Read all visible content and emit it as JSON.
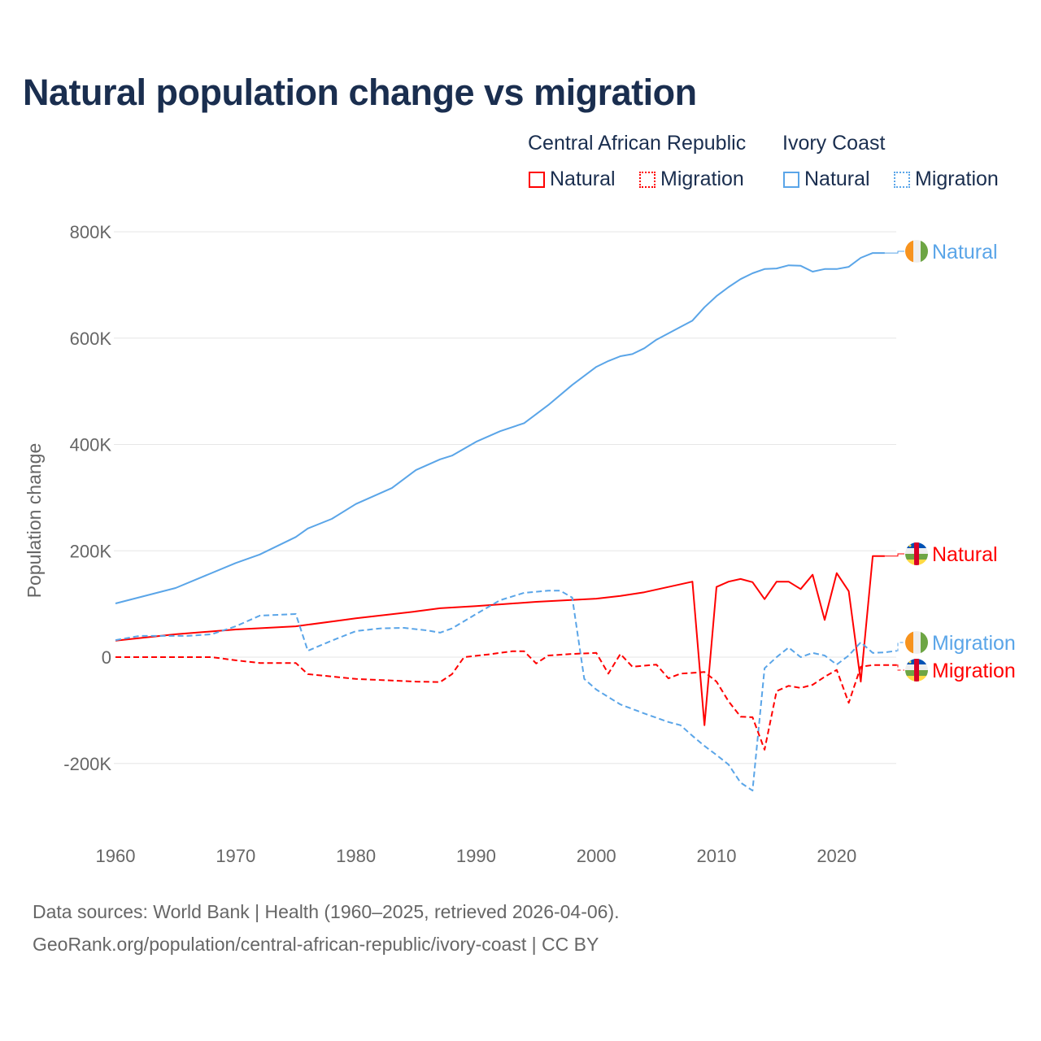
{
  "chart_data": {
    "type": "line",
    "title": "Natural population change vs migration",
    "ylabel": "Population change",
    "xlabel": "",
    "xlim": [
      1960,
      2025
    ],
    "ylim": [
      -300000,
      800000
    ],
    "x_ticks": [
      1960,
      1970,
      1980,
      1990,
      2000,
      2010,
      2020
    ],
    "x_tick_labels": [
      "1960",
      "1970",
      "1980",
      "1990",
      "2000",
      "2010",
      "2020"
    ],
    "y_ticks": [
      -200000,
      0,
      200000,
      400000,
      600000,
      800000
    ],
    "y_tick_labels": [
      "-200K",
      "0",
      "200K",
      "400K",
      "600K",
      "800K"
    ],
    "grid": true,
    "legend": {
      "placement": "top-right",
      "groups": [
        {
          "country": "Central African Republic",
          "items": [
            "Natural",
            "Migration"
          ]
        },
        {
          "country": "Ivory Coast",
          "items": [
            "Natural",
            "Migration"
          ]
        }
      ]
    },
    "series": [
      {
        "name": "Ivory Coast Natural",
        "label": "Natural",
        "color": "#5aa5e8",
        "dash": false,
        "flag": "ivory-coast",
        "points": [
          [
            1960,
            101
          ],
          [
            1965,
            130
          ],
          [
            1970,
            177
          ],
          [
            1972,
            193
          ],
          [
            1975,
            226
          ],
          [
            1976,
            242
          ],
          [
            1978,
            260
          ],
          [
            1980,
            288
          ],
          [
            1983,
            318
          ],
          [
            1985,
            352
          ],
          [
            1987,
            372
          ],
          [
            1988,
            379
          ],
          [
            1990,
            405
          ],
          [
            1992,
            425
          ],
          [
            1994,
            440
          ],
          [
            1996,
            474
          ],
          [
            1998,
            512
          ],
          [
            2000,
            546
          ],
          [
            2001,
            557
          ],
          [
            2002,
            566
          ],
          [
            2003,
            570
          ],
          [
            2004,
            581
          ],
          [
            2005,
            597
          ],
          [
            2006,
            609
          ],
          [
            2007,
            621
          ],
          [
            2008,
            633
          ],
          [
            2009,
            658
          ],
          [
            2010,
            679
          ],
          [
            2011,
            696
          ],
          [
            2012,
            711
          ],
          [
            2013,
            722
          ],
          [
            2014,
            730
          ],
          [
            2015,
            731
          ],
          [
            2016,
            737
          ],
          [
            2017,
            736
          ],
          [
            2018,
            725
          ],
          [
            2019,
            730
          ],
          [
            2020,
            730
          ],
          [
            2021,
            734
          ],
          [
            2022,
            751
          ],
          [
            2023,
            760
          ],
          [
            2024,
            760
          ]
        ]
      },
      {
        "name": "Central African Republic Natural",
        "label": "Natural",
        "color": "#ff0000",
        "dash": false,
        "flag": "central-african-republic",
        "points": [
          [
            1960,
            31
          ],
          [
            1965,
            43
          ],
          [
            1970,
            52
          ],
          [
            1975,
            58
          ],
          [
            1980,
            73
          ],
          [
            1985,
            86
          ],
          [
            1987,
            92
          ],
          [
            1990,
            96
          ],
          [
            1995,
            104
          ],
          [
            2000,
            110
          ],
          [
            2002,
            115
          ],
          [
            2004,
            122
          ],
          [
            2006,
            132
          ],
          [
            2008,
            142
          ],
          [
            2009,
            -128
          ],
          [
            2010,
            132
          ],
          [
            2011,
            142
          ],
          [
            2012,
            147
          ],
          [
            2013,
            141
          ],
          [
            2014,
            109
          ],
          [
            2015,
            142
          ],
          [
            2016,
            142
          ],
          [
            2017,
            128
          ],
          [
            2018,
            155
          ],
          [
            2019,
            70
          ],
          [
            2020,
            158
          ],
          [
            2021,
            124
          ],
          [
            2022,
            -46
          ],
          [
            2023,
            190
          ],
          [
            2024,
            190
          ]
        ]
      },
      {
        "name": "Ivory Coast Migration",
        "label": "Migration",
        "color": "#5aa5e8",
        "dash": true,
        "flag": "ivory-coast",
        "points": [
          [
            1960,
            32
          ],
          [
            1962,
            40
          ],
          [
            1966,
            40
          ],
          [
            1968,
            43
          ],
          [
            1970,
            58
          ],
          [
            1972,
            78
          ],
          [
            1975,
            81
          ],
          [
            1976,
            12
          ],
          [
            1978,
            31
          ],
          [
            1980,
            49
          ],
          [
            1982,
            54
          ],
          [
            1984,
            55
          ],
          [
            1986,
            50
          ],
          [
            1987,
            46
          ],
          [
            1988,
            54
          ],
          [
            1990,
            81
          ],
          [
            1992,
            107
          ],
          [
            1994,
            121
          ],
          [
            1996,
            125
          ],
          [
            1997,
            125
          ],
          [
            1998,
            112
          ],
          [
            1999,
            -41
          ],
          [
            2000,
            -61
          ],
          [
            2002,
            -89
          ],
          [
            2004,
            -106
          ],
          [
            2006,
            -122
          ],
          [
            2007,
            -128
          ],
          [
            2008,
            -148
          ],
          [
            2009,
            -167
          ],
          [
            2010,
            -184
          ],
          [
            2011,
            -202
          ],
          [
            2012,
            -236
          ],
          [
            2013,
            -251
          ],
          [
            2014,
            -21
          ],
          [
            2015,
            0
          ],
          [
            2016,
            18
          ],
          [
            2017,
            0
          ],
          [
            2018,
            8
          ],
          [
            2019,
            3
          ],
          [
            2020,
            -14
          ],
          [
            2021,
            3
          ],
          [
            2022,
            28
          ],
          [
            2023,
            8
          ],
          [
            2024,
            9
          ],
          [
            2025,
            12
          ]
        ]
      },
      {
        "name": "Central African Republic Migration",
        "label": "Migration",
        "color": "#ff0000",
        "dash": true,
        "flag": "central-african-republic",
        "points": [
          [
            1960,
            0
          ],
          [
            1968,
            0
          ],
          [
            1970,
            -6
          ],
          [
            1972,
            -11
          ],
          [
            1975,
            -11
          ],
          [
            1976,
            -32
          ],
          [
            1980,
            -41
          ],
          [
            1985,
            -46
          ],
          [
            1987,
            -47
          ],
          [
            1988,
            -32
          ],
          [
            1989,
            0
          ],
          [
            1991,
            5
          ],
          [
            1993,
            11
          ],
          [
            1994,
            11
          ],
          [
            1995,
            -12
          ],
          [
            1996,
            3
          ],
          [
            1998,
            6
          ],
          [
            2000,
            8
          ],
          [
            2001,
            -31
          ],
          [
            2002,
            6
          ],
          [
            2003,
            -18
          ],
          [
            2005,
            -14
          ],
          [
            2006,
            -40
          ],
          [
            2007,
            -31
          ],
          [
            2009,
            -28
          ],
          [
            2010,
            -46
          ],
          [
            2011,
            -83
          ],
          [
            2012,
            -112
          ],
          [
            2013,
            -113
          ],
          [
            2014,
            -174
          ],
          [
            2015,
            -64
          ],
          [
            2016,
            -54
          ],
          [
            2017,
            -58
          ],
          [
            2018,
            -52
          ],
          [
            2019,
            -37
          ],
          [
            2020,
            -24
          ],
          [
            2021,
            -86
          ],
          [
            2022,
            -18
          ],
          [
            2023,
            -15
          ],
          [
            2024,
            -15
          ],
          [
            2025,
            -15
          ]
        ]
      }
    ],
    "values_unit": "thousands"
  },
  "footer": {
    "line1": "Data sources: World Bank | Health (1960–2025, retrieved 2026-04-06).",
    "line2": "GeoRank.org/population/central-african-republic/ivory-coast | CC BY"
  }
}
